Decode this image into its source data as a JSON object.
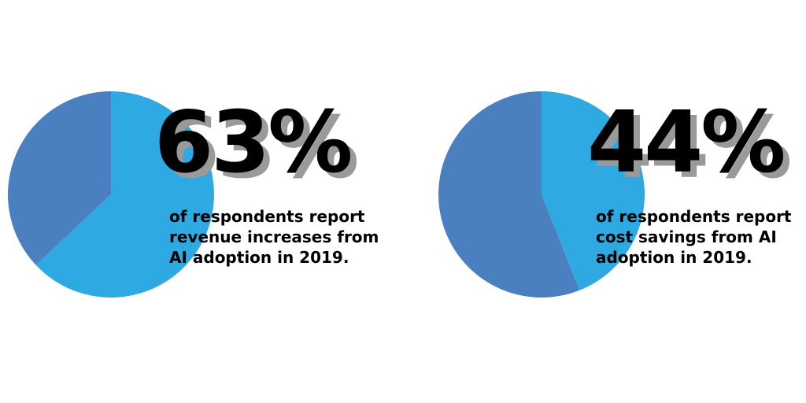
{
  "chart_data": [
    {
      "type": "pie",
      "slices": [
        {
          "label": "report revenue increases",
          "value": 63
        },
        {
          "label": "other",
          "value": 37
        }
      ],
      "colors": [
        "#2EA9E1",
        "#4A7FC0"
      ],
      "percent_label": "63%",
      "caption_lines": [
        "of respondents report",
        "revenue increases from",
        "AI adoption in 2019."
      ]
    },
    {
      "type": "pie",
      "slices": [
        {
          "label": "report cost savings",
          "value": 44
        },
        {
          "label": "other",
          "value": 56
        }
      ],
      "colors": [
        "#2EA9E1",
        "#4A7FC0"
      ],
      "percent_label": "44%",
      "caption_lines": [
        "of respondents report",
        "cost savings from AI",
        "adoption in 2019."
      ]
    }
  ]
}
